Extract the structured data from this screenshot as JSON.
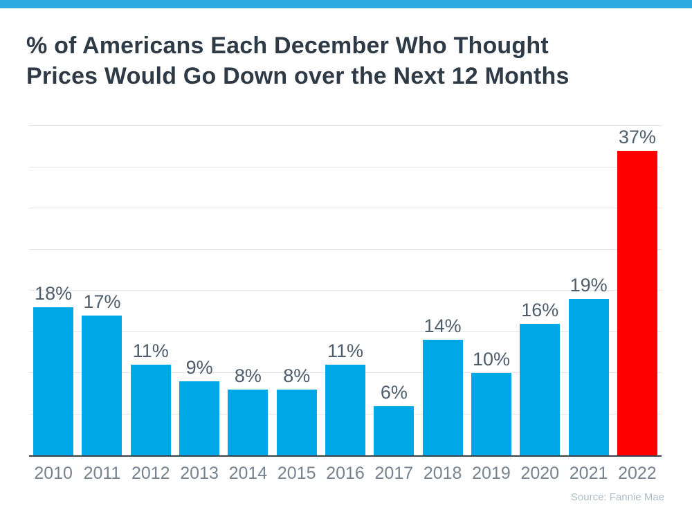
{
  "page": {
    "title_line1": "% of Americans Each December Who Thought",
    "title_line2": "Prices Would Go Down over the Next 12 Months",
    "source": "Source: Fannie Mae"
  },
  "colors": {
    "top_strip": "#29ABE2",
    "bar": "#00A8E8",
    "bar_highlight": "#FE0000",
    "title_text": "#2E3A45",
    "value_label": "#4E5D6B",
    "axis_label": "#76838E",
    "gridline": "#E4E4E4",
    "axis_line": "#37424A",
    "source_text": "#AEBDC8"
  },
  "chart_data": {
    "type": "bar",
    "title": "% of Americans Each December Who Thought Prices Would Go Down over the Next 12 Months",
    "categories": [
      "2010",
      "2011",
      "2012",
      "2013",
      "2014",
      "2015",
      "2016",
      "2017",
      "2018",
      "2019",
      "2020",
      "2021",
      "2022"
    ],
    "values": [
      18,
      17,
      11,
      9,
      8,
      8,
      11,
      6,
      14,
      10,
      16,
      19,
      37
    ],
    "value_labels": [
      "18%",
      "17%",
      "11%",
      "9%",
      "8%",
      "8%",
      "11%",
      "6%",
      "14%",
      "10%",
      "16%",
      "19%",
      "37%"
    ],
    "highlight_category": "2022",
    "xlabel": "",
    "ylabel": "",
    "ylim": [
      0,
      40
    ],
    "gridline_step": 5,
    "grid": true,
    "legend": false,
    "annotation": "Source: Fannie Mae"
  }
}
